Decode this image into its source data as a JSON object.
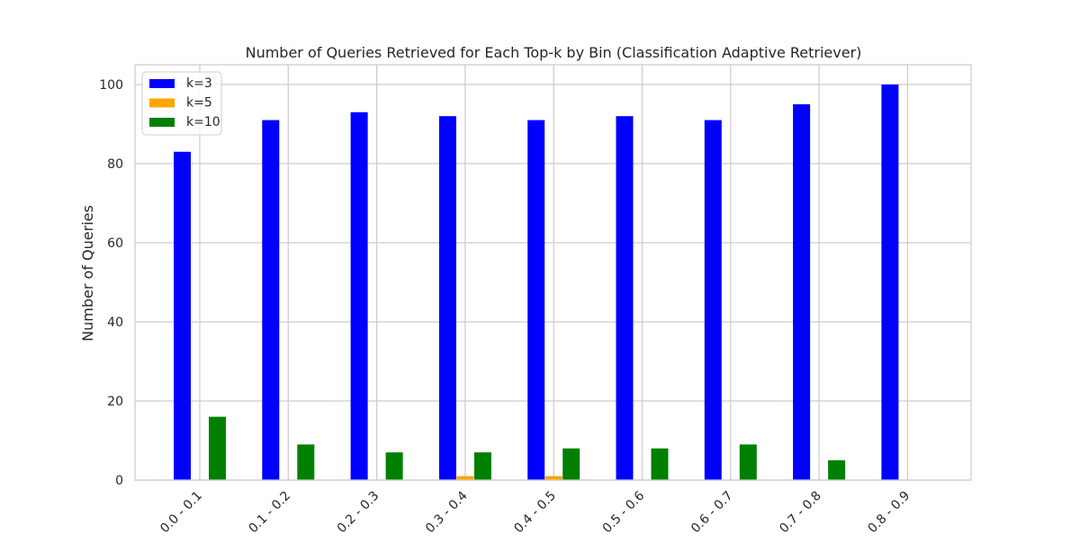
{
  "chart_data": {
    "type": "bar",
    "title": "Number of Queries Retrieved for Each Top-k by Bin (Classification Adaptive Retriever)",
    "xlabel": "",
    "ylabel": "Number of Queries",
    "categories": [
      "0.0 - 0.1",
      "0.1 - 0.2",
      "0.2 - 0.3",
      "0.3 - 0.4",
      "0.4 - 0.5",
      "0.5 - 0.6",
      "0.6 - 0.7",
      "0.7 - 0.8",
      "0.8 - 0.9"
    ],
    "series": [
      {
        "name": "k=3",
        "color": "#0000ff",
        "values": [
          83,
          91,
          93,
          92,
          91,
          92,
          91,
          95,
          100
        ]
      },
      {
        "name": "k=5",
        "color": "#ffa500",
        "values": [
          0,
          0,
          0,
          1,
          1,
          0,
          0,
          0,
          0
        ]
      },
      {
        "name": "k=10",
        "color": "#008000",
        "values": [
          16,
          9,
          7,
          7,
          8,
          8,
          9,
          5,
          0
        ]
      }
    ],
    "ylim": [
      0,
      105
    ],
    "yticks": [
      0,
      20,
      40,
      60,
      80,
      100
    ],
    "grid": true,
    "legend_position": "top-left",
    "xtick_rotation": "45"
  }
}
